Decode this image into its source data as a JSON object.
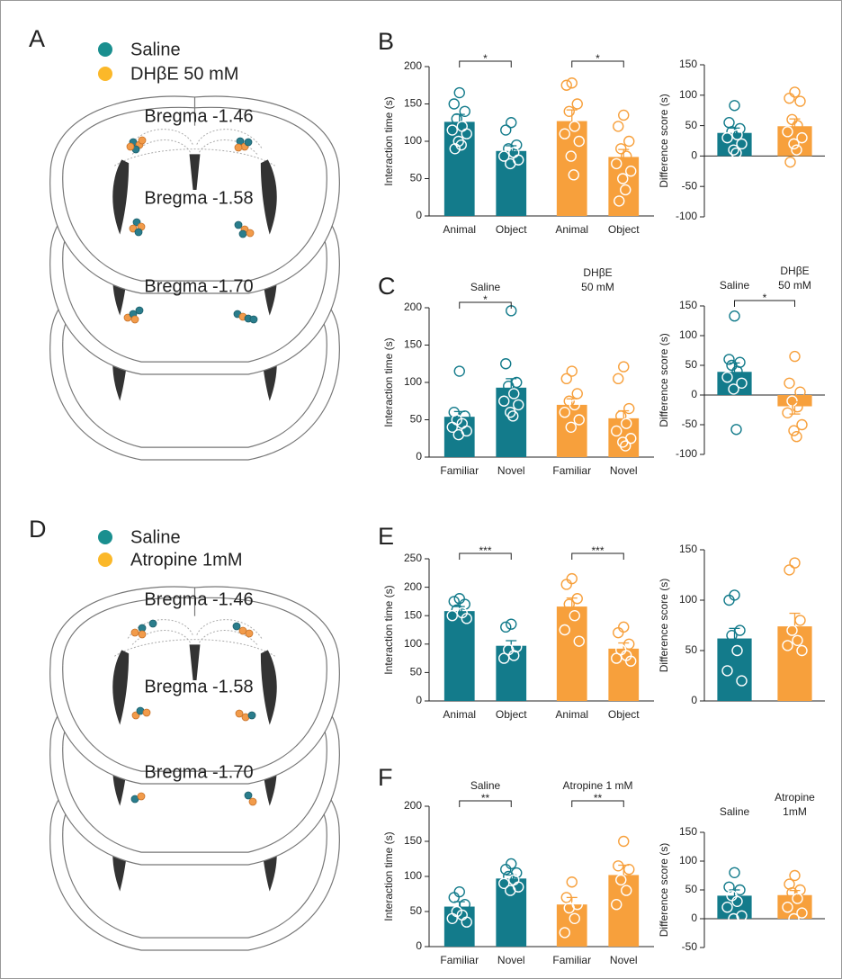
{
  "diagrams": [
    {
      "panel": "A",
      "legend": [
        "Saline",
        "DHβE 50 mM"
      ],
      "colors": [
        "#1a8f8f",
        "#fbb829"
      ],
      "sections": [
        "Bregma -1.46",
        "Bregma -1.58",
        "Bregma -1.70"
      ]
    },
    {
      "panel": "D",
      "legend": [
        "Saline",
        "Atropine 1mM"
      ],
      "colors": [
        "#1a8f8f",
        "#fbb829"
      ],
      "sections": [
        "Bregma -1.46",
        "Bregma -1.58",
        "Bregma -1.70"
      ]
    }
  ],
  "chart_data": [
    {
      "type": "bar",
      "panel": "B",
      "ylabel": "Interaction time (s)",
      "ylim": [
        0,
        200
      ],
      "yticks": [
        0,
        50,
        100,
        150,
        200
      ],
      "groups": [
        {
          "color": "#137b8b",
          "categories": [
            "Animal",
            "Object"
          ],
          "values": [
            126,
            87
          ],
          "errors": [
            10,
            7
          ],
          "significance": "*",
          "points": [
            [
              165,
              150,
              140,
              130,
              120,
              115,
              110,
              100,
              95,
              90
            ],
            [
              125,
              115,
              95,
              90,
              85,
              80,
              75,
              70
            ]
          ]
        },
        {
          "color": "#f7a03c",
          "categories": [
            "Animal",
            "Object"
          ],
          "values": [
            127,
            79
          ],
          "errors": [
            15,
            10
          ],
          "significance": "*",
          "points": [
            [
              178,
              175,
              150,
              140,
              120,
              110,
              100,
              80,
              55
            ],
            [
              135,
              120,
              100,
              90,
              80,
              70,
              60,
              50,
              35,
              20
            ]
          ]
        }
      ]
    },
    {
      "type": "bar",
      "ylabel": "Difference score (s)",
      "ylim": [
        -100,
        150
      ],
      "yticks": [
        -100,
        -50,
        0,
        50,
        100,
        150
      ],
      "groups": [
        {
          "color": "#137b8b",
          "categories": [
            null
          ],
          "values": [
            38
          ],
          "errors": [
            8
          ],
          "points": [
            [
              83,
              55,
              45,
              40,
              35,
              30,
              20,
              10,
              5
            ]
          ]
        },
        {
          "color": "#f7a03c",
          "categories": [
            null
          ],
          "values": [
            49
          ],
          "errors": [
            12
          ],
          "points": [
            [
              105,
              95,
              90,
              60,
              50,
              40,
              30,
              20,
              10,
              -10
            ]
          ]
        }
      ]
    },
    {
      "type": "bar",
      "panel": "C",
      "ylabel": "Interaction time (s)",
      "ylim": [
        0,
        200
      ],
      "yticks": [
        0,
        50,
        100,
        150,
        200
      ],
      "groups": [
        {
          "name": [
            "Saline"
          ],
          "color": "#137b8b",
          "categories": [
            "Familiar",
            "Novel"
          ],
          "values": [
            54,
            93
          ],
          "errors": [
            7,
            12
          ],
          "significance": "*",
          "points": [
            [
              115,
              60,
              55,
              50,
              45,
              40,
              35,
              30
            ],
            [
              196,
              125,
              100,
              95,
              85,
              75,
              70,
              60,
              55
            ]
          ]
        },
        {
          "name": [
            "DHβE",
            "50 mM"
          ],
          "color": "#f7a03c",
          "categories": [
            "Familiar",
            "Novel"
          ],
          "values": [
            70,
            52
          ],
          "errors": [
            8,
            10
          ],
          "points": [
            [
              115,
              105,
              85,
              75,
              70,
              60,
              50,
              40
            ],
            [
              121,
              105,
              65,
              55,
              45,
              35,
              25,
              20,
              15
            ]
          ]
        }
      ]
    },
    {
      "type": "bar",
      "ylabel": "Difference score (s)",
      "ylim": [
        -100,
        150
      ],
      "yticks": [
        -100,
        -50,
        0,
        50,
        100,
        150
      ],
      "significance": "*",
      "groups": [
        {
          "name": [
            "Saline"
          ],
          "color": "#137b8b",
          "categories": [
            null
          ],
          "values": [
            39
          ],
          "errors": [
            15
          ],
          "points": [
            [
              133,
              60,
              55,
              50,
              40,
              30,
              20,
              10,
              -58
            ]
          ]
        },
        {
          "name": [
            "DHβE",
            "50 mM"
          ],
          "color": "#f7a03c",
          "categories": [
            null
          ],
          "values": [
            -19
          ],
          "errors": [
            13
          ],
          "points": [
            [
              65,
              20,
              5,
              -10,
              -20,
              -30,
              -50,
              -60,
              -70
            ]
          ]
        }
      ]
    },
    {
      "type": "bar",
      "panel": "E",
      "ylabel": "Interaction time (s)",
      "ylim": [
        0,
        250
      ],
      "yticks": [
        0,
        50,
        100,
        150,
        200,
        250
      ],
      "groups": [
        {
          "color": "#137b8b",
          "categories": [
            "Animal",
            "Object"
          ],
          "values": [
            158,
            97
          ],
          "errors": [
            8,
            9
          ],
          "significance": "***",
          "points": [
            [
              180,
              175,
              170,
              160,
              155,
              150,
              145
            ],
            [
              135,
              130,
              95,
              90,
              80,
              75
            ]
          ]
        },
        {
          "color": "#f7a03c",
          "categories": [
            "Animal",
            "Object"
          ],
          "values": [
            166,
            92
          ],
          "errors": [
            15,
            10
          ],
          "significance": "***",
          "points": [
            [
              215,
              205,
              180,
              170,
              150,
              125,
              105
            ],
            [
              130,
              120,
              100,
              90,
              80,
              75,
              70
            ]
          ]
        }
      ]
    },
    {
      "type": "bar",
      "ylabel": "Difference score (s)",
      "ylim": [
        0,
        150
      ],
      "yticks": [
        0,
        50,
        100,
        150
      ],
      "groups": [
        {
          "color": "#137b8b",
          "categories": [
            null
          ],
          "values": [
            62
          ],
          "errors": [
            10
          ],
          "points": [
            [
              105,
              100,
              70,
              65,
              50,
              30,
              20
            ]
          ]
        },
        {
          "color": "#f7a03c",
          "categories": [
            null
          ],
          "values": [
            74
          ],
          "errors": [
            13
          ],
          "points": [
            [
              137,
              130,
              80,
              70,
              60,
              55,
              50
            ]
          ]
        }
      ]
    },
    {
      "type": "bar",
      "panel": "F",
      "ylabel": "Interaction time (s)",
      "ylim": [
        0,
        200
      ],
      "yticks": [
        0,
        50,
        100,
        150,
        200
      ],
      "groups": [
        {
          "name": [
            "Saline"
          ],
          "color": "#137b8b",
          "categories": [
            "Familiar",
            "Novel"
          ],
          "values": [
            57,
            97
          ],
          "errors": [
            7,
            5
          ],
          "significance": "**",
          "points": [
            [
              78,
              70,
              60,
              50,
              45,
              40,
              35
            ],
            [
              118,
              110,
              105,
              100,
              95,
              90,
              85,
              80
            ]
          ]
        },
        {
          "name": [
            "Atropine 1 mM"
          ],
          "color": "#f7a03c",
          "categories": [
            "Familiar",
            "Novel"
          ],
          "values": [
            60,
            102
          ],
          "errors": [
            10,
            14
          ],
          "significance": "**",
          "points": [
            [
              92,
              70,
              60,
              55,
              40,
              20
            ],
            [
              150,
              115,
              110,
              95,
              80,
              60
            ]
          ]
        }
      ]
    },
    {
      "type": "bar",
      "ylabel": "Difference score (s)",
      "ylim": [
        -50,
        150
      ],
      "yticks": [
        -50,
        0,
        50,
        100,
        150
      ],
      "groups": [
        {
          "name": [
            "Saline"
          ],
          "color": "#137b8b",
          "categories": [
            null
          ],
          "values": [
            40
          ],
          "errors": [
            10
          ],
          "points": [
            [
              80,
              55,
              50,
              40,
              30,
              20,
              5,
              0
            ]
          ]
        },
        {
          "name": [
            "Atropine",
            "1mM"
          ],
          "color": "#f7a03c",
          "categories": [
            null
          ],
          "values": [
            41
          ],
          "errors": [
            8
          ],
          "points": [
            [
              75,
              60,
              50,
              45,
              35,
              20,
              10,
              0
            ]
          ]
        }
      ]
    }
  ]
}
